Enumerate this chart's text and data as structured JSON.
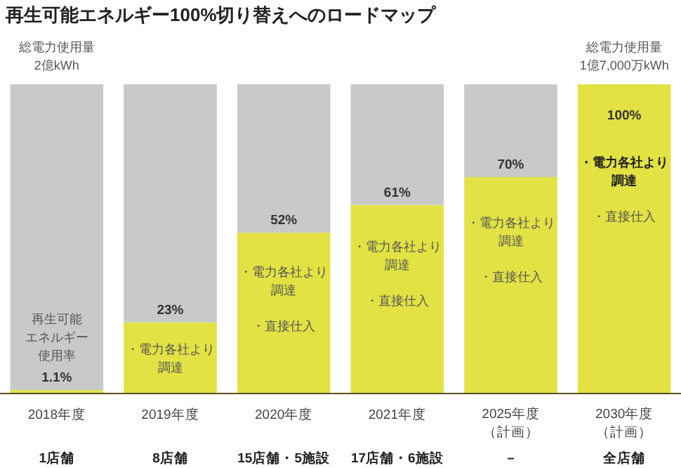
{
  "chart_data": {
    "type": "bar",
    "title": "再生可能エネルギー100%切り替えへのロードマップ",
    "stacked": true,
    "ylim": [
      0,
      100
    ],
    "tick_labels": "x",
    "categories": [
      "2018年度",
      "2019年度",
      "2020年度",
      "2021年度",
      "2025年度（計画）",
      "2030年度（計画）"
    ],
    "series": [
      {
        "color": "#e2e244",
        "values": [
          1.1,
          23,
          52,
          61,
          70,
          100
        ],
        "value_labels": [
          "1.1%",
          "23%",
          "52%",
          "61%",
          "70%",
          "100%"
        ]
      },
      {
        "color": "#c8c9c8",
        "values": [
          98.9,
          77,
          48,
          39,
          30,
          0
        ]
      }
    ],
    "annotations": [
      "総電力使用量2億kWh",
      "総電力使用量1億7,000万kWh",
      "再生可能エネルギー使用率",
      "・電力各社より調達",
      "・電力各社より調達",
      "・直接仕入",
      "・電力各社より調達",
      "・直接仕入",
      "・電力各社より調達",
      "・直接仕入",
      "・電力各社より調達",
      "・直接仕入",
      "1店舗",
      "8店舗",
      "15店舗・5施設",
      "17店舗・6施設",
      "－",
      "全店舗"
    ]
  }
}
